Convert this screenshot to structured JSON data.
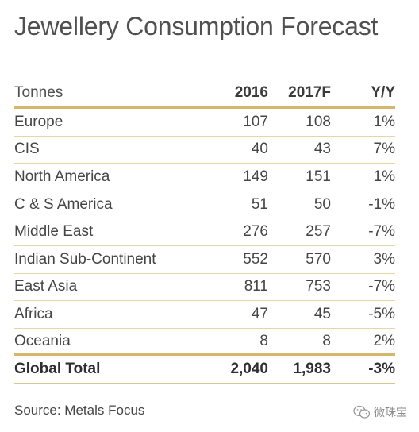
{
  "title": "Jewellery Consumption Forecast",
  "table": {
    "headers": [
      "Tonnes",
      "2016",
      "2017F",
      "Y/Y"
    ],
    "rows": [
      {
        "region": "Europe",
        "y2016": "107",
        "y2017f": "108",
        "yy": "1%"
      },
      {
        "region": "CIS",
        "y2016": "40",
        "y2017f": "43",
        "yy": "7%"
      },
      {
        "region": "North America",
        "y2016": "149",
        "y2017f": "151",
        "yy": "1%"
      },
      {
        "region": "C & S America",
        "y2016": "51",
        "y2017f": "50",
        "yy": "-1%"
      },
      {
        "region": "Middle East",
        "y2016": "276",
        "y2017f": "257",
        "yy": "-7%"
      },
      {
        "region": "Indian Sub-Continent",
        "y2016": "552",
        "y2017f": "570",
        "yy": "3%"
      },
      {
        "region": "East Asia",
        "y2016": "811",
        "y2017f": "753",
        "yy": "-7%"
      },
      {
        "region": "Africa",
        "y2016": "47",
        "y2017f": "45",
        "yy": "-5%"
      },
      {
        "region": "Oceania",
        "y2016": "8",
        "y2017f": "8",
        "yy": "2%"
      }
    ],
    "total": {
      "region": "Global Total",
      "y2016": "2,040",
      "y2017f": "1,983",
      "yy": "-3%"
    }
  },
  "source": "Source: Metals Focus",
  "watermark": {
    "text": "微珠宝",
    "icon": "wechat-icon"
  },
  "colors": {
    "gold_rule": "#d6b669",
    "light_rule": "#e6d6a4"
  }
}
